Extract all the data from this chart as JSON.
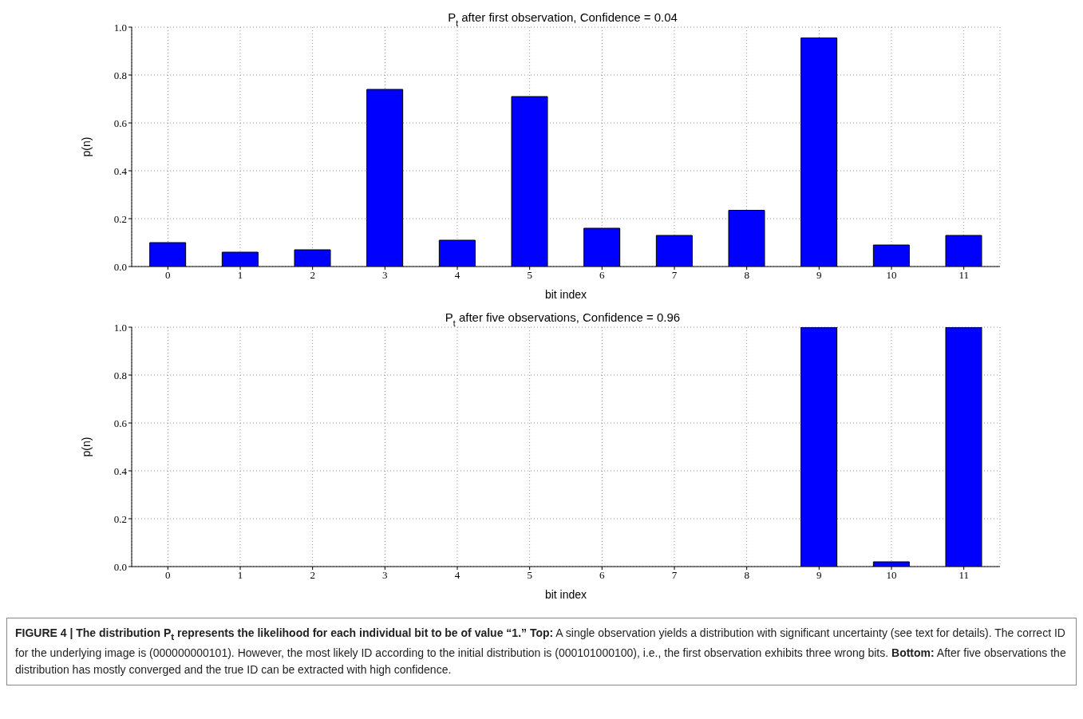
{
  "chart_data": [
    {
      "type": "bar",
      "title": "P$_{t}$ after first observation, Confidence = 0.04",
      "xlabel": "bit index",
      "ylabel": "p(n)",
      "categories": [
        "0",
        "1",
        "2",
        "3",
        "4",
        "5",
        "6",
        "7",
        "8",
        "9",
        "10",
        "11"
      ],
      "series": [
        {
          "color": "#0000ff",
          "values": [
            0.1,
            0.06,
            0.07,
            0.74,
            0.11,
            0.71,
            0.16,
            0.13,
            0.235,
            0.955,
            0.09,
            0.13
          ]
        }
      ],
      "ylim": [
        0,
        1
      ],
      "yticks": [
        {
          "value": 0,
          "label": "0.0"
        },
        {
          "value": 0.2,
          "label": "0.2"
        },
        {
          "value": 0.4,
          "label": "0.4"
        },
        {
          "value": 0.6,
          "label": "0.6"
        },
        {
          "value": 0.8,
          "label": "0.8"
        },
        {
          "value": 1,
          "label": "1.0"
        }
      ],
      "grid": true
    },
    {
      "type": "bar",
      "title": "P$_{t}$ after five observations, Confidence = 0.96",
      "xlabel": "bit index",
      "ylabel": "p(n)",
      "categories": [
        "0",
        "1",
        "2",
        "3",
        "4",
        "5",
        "6",
        "7",
        "8",
        "9",
        "10",
        "11"
      ],
      "series": [
        {
          "color": "#0000ff",
          "values": [
            0,
            0,
            0,
            0,
            0,
            0,
            0,
            0,
            0,
            1.0,
            0.02,
            1.0
          ]
        }
      ],
      "ylim": [
        0,
        1
      ],
      "yticks": [
        {
          "value": 0,
          "label": "0.0"
        },
        {
          "value": 0.2,
          "label": "0.2"
        },
        {
          "value": 0.4,
          "label": "0.4"
        },
        {
          "value": 0.6,
          "label": "0.6"
        },
        {
          "value": 0.8,
          "label": "0.8"
        },
        {
          "value": 1,
          "label": "1.0"
        }
      ],
      "grid": true,
      "annotations": [
        "FIGURE 4 | The distribution P$_{t}$ represents the likelihood for each individual bit to be of value “1.” ",
        "Top:",
        " A single observation yields a distribution with significant uncertainty (see text for details). The correct ID for the underlying image is (000000000101). However, the most likely ID according to the initial distribution is (000101000100), i.e., the first observation exhibits three wrong bits. ",
        "Bottom:",
        " After five observations the distribution has mostly converged and the true ID can be extracted with high confidence."
      ]
    }
  ]
}
